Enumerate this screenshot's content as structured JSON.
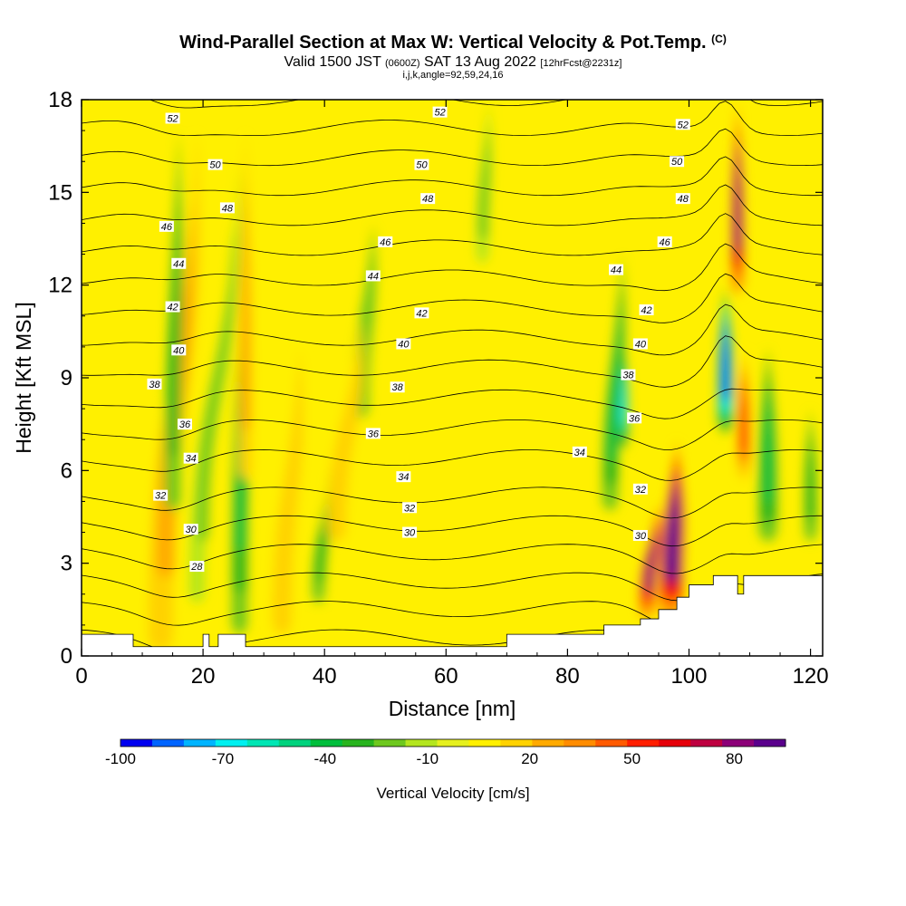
{
  "header": {
    "title": "Wind-Parallel Section at Max W: Vertical Velocity & Pot.Temp.",
    "title_mark": "(C)",
    "valid_prefix": "Valid 1500 JST",
    "valid_utc": "(0600Z)",
    "valid_date": "SAT 13 Aug 2022",
    "forecast": "[12hrFcst@2231z]",
    "indices": "i,j,k,angle=92,59,24,16"
  },
  "chart_data": {
    "type": "heatmap",
    "xlabel": "Distance [nm]",
    "ylabel": "Height [Kft MSL]",
    "xlim": [
      0,
      122
    ],
    "ylim": [
      0,
      18
    ],
    "x_ticks": [
      0,
      20,
      40,
      60,
      80,
      100,
      120
    ],
    "y_ticks": [
      0,
      3,
      6,
      9,
      12,
      15,
      18
    ],
    "colorbar": {
      "label": "Vertical Velocity [cm/s]",
      "min": -100,
      "max": 95,
      "step": 5,
      "tick_values": [
        -100,
        -70,
        -40,
        -10,
        20,
        50,
        80
      ],
      "tick_labels": [
        "-100",
        "-70",
        "-40",
        "-10",
        "20",
        "50",
        "80"
      ],
      "colors": [
        "#0000f0",
        "#0064ff",
        "#00b4ff",
        "#00f0f0",
        "#00e6b4",
        "#00d27d",
        "#00be3c",
        "#28b41e",
        "#6ec81e",
        "#b4e61e",
        "#e6f01e",
        "#fff000",
        "#ffd200",
        "#ffaa00",
        "#ff8c00",
        "#ff5a00",
        "#ff1e00",
        "#e6000a",
        "#be0040",
        "#8c0078",
        "#5a008c"
      ]
    },
    "terrain_height_kft": [
      [
        0,
        0.7
      ],
      [
        8.5,
        0.7
      ],
      [
        8.5,
        0.3
      ],
      [
        20,
        0.3
      ],
      [
        20,
        0.7
      ],
      [
        21,
        0.7
      ],
      [
        21,
        0.3
      ],
      [
        22.5,
        0.3
      ],
      [
        22.5,
        0.7
      ],
      [
        27,
        0.7
      ],
      [
        27,
        0.3
      ],
      [
        70,
        0.3
      ],
      [
        70,
        0.7
      ],
      [
        86,
        0.7
      ],
      [
        86,
        1.0
      ],
      [
        92,
        1.0
      ],
      [
        92,
        1.2
      ],
      [
        95,
        1.2
      ],
      [
        95,
        1.5
      ],
      [
        98,
        1.5
      ],
      [
        98,
        1.9
      ],
      [
        100,
        1.9
      ],
      [
        100,
        2.3
      ],
      [
        104,
        2.3
      ],
      [
        104,
        2.6
      ],
      [
        108,
        2.6
      ],
      [
        108,
        2.0
      ],
      [
        109,
        2.0
      ],
      [
        109,
        2.6
      ],
      [
        122,
        2.6
      ]
    ],
    "vertical_velocity_cm_s": [
      {
        "x": 13,
        "x_top": 19,
        "y0": 0.5,
        "y1": 17,
        "width_nm": 4,
        "w": 25
      },
      {
        "x": 15,
        "x_top": 16,
        "y0": 5,
        "y1": 17,
        "width_nm": 2.5,
        "w": -30
      },
      {
        "x": 19,
        "x_top": 26,
        "y0": 2,
        "y1": 16,
        "width_nm": 2.5,
        "w": -20
      },
      {
        "x": 26,
        "x_top": 27,
        "y0": 1,
        "y1": 15,
        "width_nm": 2.5,
        "w": -35
      },
      {
        "x": 27,
        "x_top": 27,
        "y0": 6,
        "y1": 17,
        "width_nm": 2,
        "w": 25
      },
      {
        "x": 33,
        "x_top": 36,
        "y0": 1,
        "y1": 10,
        "width_nm": 3,
        "w": 20
      },
      {
        "x": 39,
        "x_top": 41,
        "y0": 2,
        "y1": 6,
        "width_nm": 2,
        "w": -30
      },
      {
        "x": 46,
        "x_top": 48,
        "y0": 8,
        "y1": 14,
        "width_nm": 2.5,
        "w": -25
      },
      {
        "x": 42,
        "x_top": 46,
        "y0": 4,
        "y1": 11,
        "width_nm": 3,
        "w": 20
      },
      {
        "x": 66,
        "x_top": 67,
        "y0": 13,
        "y1": 18,
        "width_nm": 2,
        "w": -20
      },
      {
        "x": 89,
        "x_top": 89,
        "y0": 7,
        "y1": 10.5,
        "width_nm": 2,
        "w": -70
      },
      {
        "x": 87,
        "x_top": 89,
        "y0": 5,
        "y1": 13,
        "width_nm": 2.5,
        "w": -40
      },
      {
        "x": 97,
        "x_top": 98,
        "y0": 1.5,
        "y1": 7,
        "width_nm": 4,
        "w": 90
      },
      {
        "x": 93,
        "x_top": 95,
        "y0": 1.5,
        "y1": 5,
        "width_nm": 2.5,
        "w": 80
      },
      {
        "x": 106,
        "x_top": 106,
        "y0": 7.5,
        "y1": 12,
        "width_nm": 2.5,
        "w": -90
      },
      {
        "x": 108,
        "x_top": 108,
        "y0": 12,
        "y1": 18,
        "width_nm": 2,
        "w": 85
      },
      {
        "x": 109,
        "x_top": 109,
        "y0": 6,
        "y1": 10,
        "width_nm": 2,
        "w": 50
      },
      {
        "x": 113,
        "x_top": 113,
        "y0": 4,
        "y1": 10,
        "width_nm": 3,
        "w": -40
      },
      {
        "x": 120,
        "x_top": 120,
        "y0": 4,
        "y1": 8,
        "width_nm": 2,
        "w": -30
      }
    ],
    "potential_temperature_contours": [
      28,
      30,
      32,
      34,
      36,
      38,
      40,
      42,
      44,
      46,
      48,
      50,
      52
    ],
    "contour_labels": [
      {
        "x": 19,
        "y": 2.9,
        "text": "28"
      },
      {
        "x": 18,
        "y": 4.1,
        "text": "30"
      },
      {
        "x": 13,
        "y": 5.2,
        "text": "32"
      },
      {
        "x": 18,
        "y": 6.4,
        "text": "34"
      },
      {
        "x": 17,
        "y": 7.5,
        "text": "36"
      },
      {
        "x": 12,
        "y": 8.8,
        "text": "38"
      },
      {
        "x": 16,
        "y": 9.9,
        "text": "40"
      },
      {
        "x": 15,
        "y": 11.3,
        "text": "42"
      },
      {
        "x": 16,
        "y": 12.7,
        "text": "44"
      },
      {
        "x": 14,
        "y": 13.9,
        "text": "46"
      },
      {
        "x": 24,
        "y": 14.5,
        "text": "48"
      },
      {
        "x": 22,
        "y": 15.9,
        "text": "50"
      },
      {
        "x": 15,
        "y": 17.4,
        "text": "52"
      },
      {
        "x": 54,
        "y": 4,
        "text": "30"
      },
      {
        "x": 54,
        "y": 4.8,
        "text": "32"
      },
      {
        "x": 53,
        "y": 5.8,
        "text": "34"
      },
      {
        "x": 48,
        "y": 7.2,
        "text": "36"
      },
      {
        "x": 52,
        "y": 8.7,
        "text": "38"
      },
      {
        "x": 53,
        "y": 10.1,
        "text": "40"
      },
      {
        "x": 56,
        "y": 11.1,
        "text": "42"
      },
      {
        "x": 48,
        "y": 12.3,
        "text": "44"
      },
      {
        "x": 50,
        "y": 13.4,
        "text": "46"
      },
      {
        "x": 57,
        "y": 14.8,
        "text": "48"
      },
      {
        "x": 56,
        "y": 15.9,
        "text": "50"
      },
      {
        "x": 59,
        "y": 17.6,
        "text": "52"
      },
      {
        "x": 92,
        "y": 3.9,
        "text": "30"
      },
      {
        "x": 92,
        "y": 5.4,
        "text": "32"
      },
      {
        "x": 82,
        "y": 6.6,
        "text": "34"
      },
      {
        "x": 91,
        "y": 7.7,
        "text": "36"
      },
      {
        "x": 90,
        "y": 9.1,
        "text": "38"
      },
      {
        "x": 92,
        "y": 10.1,
        "text": "40"
      },
      {
        "x": 93,
        "y": 11.2,
        "text": "42"
      },
      {
        "x": 88,
        "y": 12.5,
        "text": "44"
      },
      {
        "x": 96,
        "y": 13.4,
        "text": "46"
      },
      {
        "x": 99,
        "y": 14.8,
        "text": "48"
      },
      {
        "x": 98,
        "y": 16.0,
        "text": "50"
      },
      {
        "x": 99,
        "y": 17.2,
        "text": "52"
      }
    ]
  }
}
